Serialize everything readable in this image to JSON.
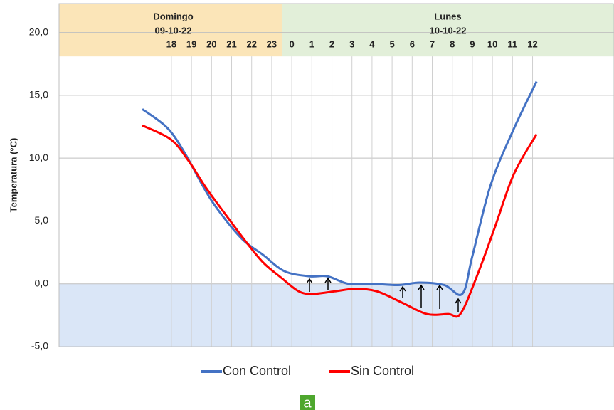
{
  "chart_data": {
    "type": "line",
    "y_label": "Temperatura (°C)",
    "xlim": [
      -5.6,
      22.06
    ],
    "ylim": [
      -5,
      22.3
    ],
    "xticks": [
      {
        "value": 0,
        "label": "18"
      },
      {
        "value": 1,
        "label": "19"
      },
      {
        "value": 2,
        "label": "20"
      },
      {
        "value": 3,
        "label": "21"
      },
      {
        "value": 4,
        "label": "22"
      },
      {
        "value": 5,
        "label": "23"
      },
      {
        "value": 6,
        "label": "0"
      },
      {
        "value": 7,
        "label": "1"
      },
      {
        "value": 8,
        "label": "2"
      },
      {
        "value": 9,
        "label": "3"
      },
      {
        "value": 10,
        "label": "4"
      },
      {
        "value": 11,
        "label": "5"
      },
      {
        "value": 12,
        "label": "6"
      },
      {
        "value": 13,
        "label": "7"
      },
      {
        "value": 14,
        "label": "8"
      },
      {
        "value": 15,
        "label": "9"
      },
      {
        "value": 16,
        "label": "10"
      },
      {
        "value": 17,
        "label": "11"
      },
      {
        "value": 18,
        "label": "12"
      }
    ],
    "yticks": [
      {
        "value": -5,
        "label": "-5,0"
      },
      {
        "value": 0,
        "label": "0,0"
      },
      {
        "value": 5,
        "label": "5,0"
      },
      {
        "value": 10,
        "label": "10,0"
      },
      {
        "value": 15,
        "label": "15,0"
      },
      {
        "value": 20,
        "label": "20,0"
      }
    ],
    "grid": true,
    "bands": [
      {
        "label": "Domingo",
        "date": "09-10-22",
        "from": -5.6,
        "to": 5.5,
        "color": "#fbe5b8"
      },
      {
        "label": "Lunes",
        "date": "10-10-22",
        "from": 5.5,
        "to": 22.06,
        "color": "#e2efd9"
      }
    ],
    "band_bottom": 18.1,
    "shade_below": 0,
    "shade_color": "#dae6f7",
    "legend": "bottom",
    "panel_label": "a",
    "panel_label_color": "#4ea72e",
    "series": [
      {
        "name": "Con Control",
        "color": "#4472c4",
        "x": [
          -1.45,
          -0.2,
          0.67,
          1.56,
          2.27,
          3.5,
          4.57,
          5.64,
          6.88,
          7.77,
          8.83,
          10.07,
          11.3,
          12.38,
          13.6,
          14.5,
          15.0,
          15.9,
          17.0,
          18.2
        ],
        "values": [
          13.9,
          12.4,
          10.4,
          7.8,
          6.0,
          3.6,
          2.3,
          1.0,
          0.6,
          0.6,
          0.0,
          0.0,
          -0.1,
          0.1,
          -0.1,
          -0.8,
          2.2,
          7.8,
          12.1,
          16.1
        ]
      },
      {
        "name": "Sin Control",
        "color": "#ff0000",
        "x": [
          -1.45,
          -0.04,
          0.85,
          1.74,
          2.8,
          3.69,
          4.57,
          5.46,
          6.35,
          7.06,
          8.12,
          9.18,
          10.25,
          11.5,
          12.73,
          13.8,
          14.4,
          15.2,
          16.1,
          17.06,
          18.2
        ],
        "values": [
          12.6,
          11.5,
          9.8,
          7.6,
          5.3,
          3.4,
          1.7,
          0.5,
          -0.6,
          -0.8,
          -0.6,
          -0.4,
          -0.6,
          -1.5,
          -2.4,
          -2.4,
          -2.4,
          0.5,
          4.4,
          8.7,
          11.9
        ]
      }
    ]
  }
}
